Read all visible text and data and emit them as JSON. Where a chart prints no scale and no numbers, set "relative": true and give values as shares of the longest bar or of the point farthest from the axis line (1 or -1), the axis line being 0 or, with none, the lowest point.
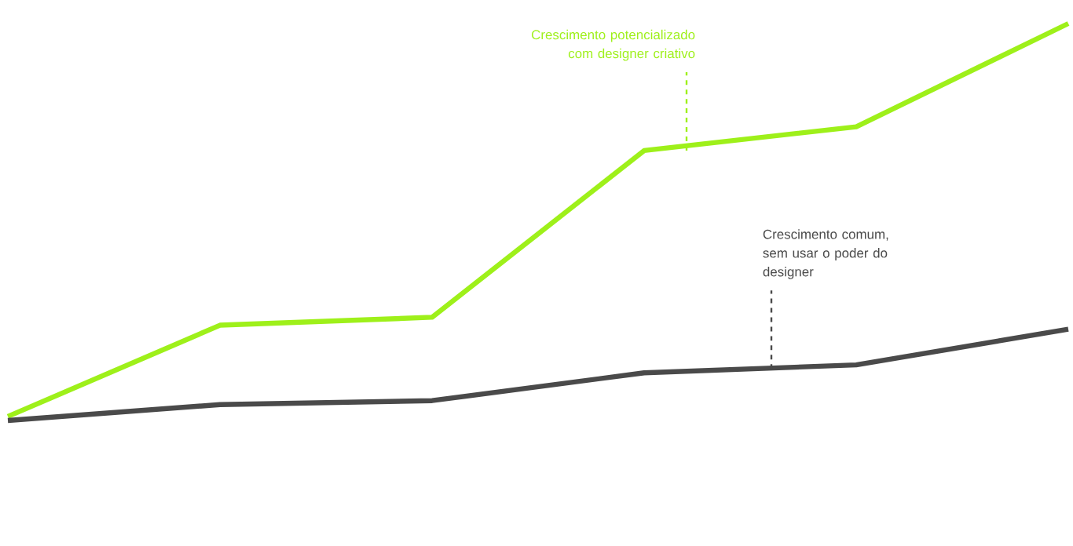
{
  "chart_data": {
    "type": "line",
    "relative": true,
    "categories": [
      null,
      null,
      null,
      null,
      null,
      null
    ],
    "series": [
      {
        "name": "Crescimento potencializado com designer criativo",
        "color": "#9ef01a",
        "values": [
          0.01,
          0.24,
          0.26,
          0.68,
          0.74,
          1
        ]
      },
      {
        "name": "Crescimento comum, sem usar o poder do designer",
        "color": "#4a4a4a",
        "values": [
          0,
          0.04,
          0.05,
          0.12,
          0.14,
          0.23
        ]
      }
    ],
    "marker": "none",
    "line_style": "solid"
  }
}
